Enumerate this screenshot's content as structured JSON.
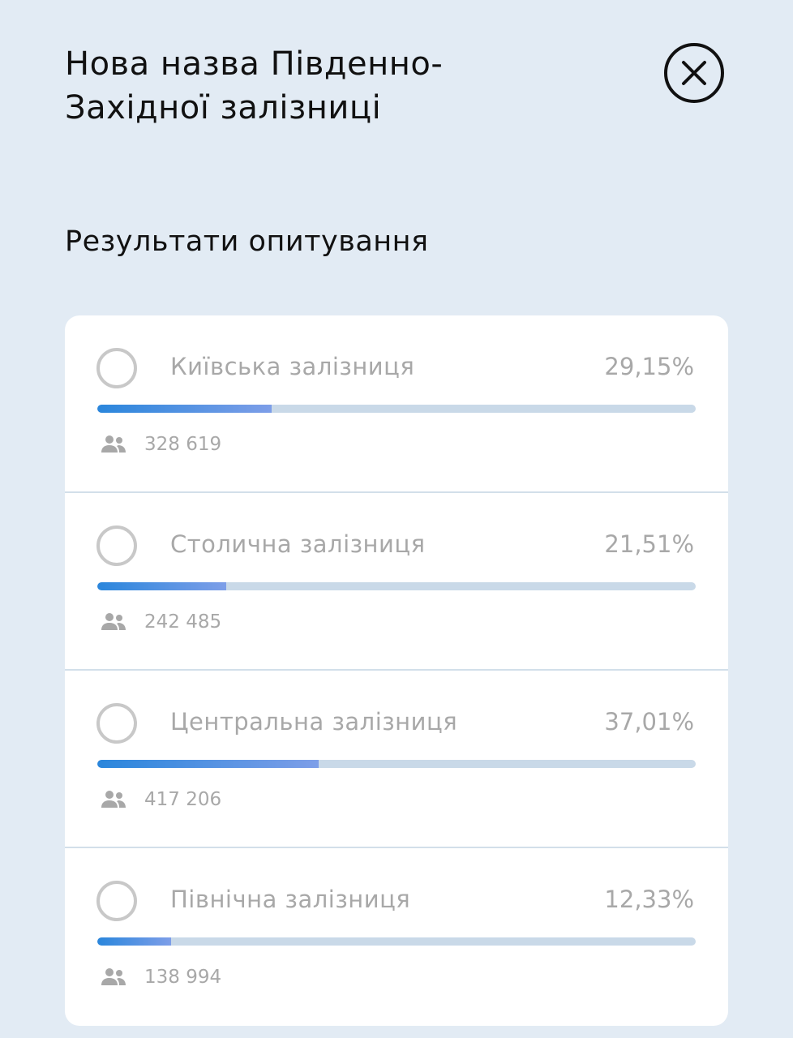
{
  "header": {
    "title": "Нова назва Південно-Західної залізниці",
    "close_icon": "close-circle-icon"
  },
  "poll": {
    "subtitle": "Результати опитування",
    "colors": {
      "bar_start": "#2a86dc",
      "bar_end": "#7d9ee8",
      "track": "#c9d9e8"
    },
    "options": [
      {
        "label": "Київська залізниця",
        "percent_text": "29,15%",
        "percent": 29.15,
        "votes": "328 619"
      },
      {
        "label": "Столична залізниця",
        "percent_text": "21,51%",
        "percent": 21.51,
        "votes": "242 485"
      },
      {
        "label": "Центральна залізниця",
        "percent_text": "37,01%",
        "percent": 37.01,
        "votes": "417 206"
      },
      {
        "label": "Північна залізниця",
        "percent_text": "12,33%",
        "percent": 12.33,
        "votes": "138 994"
      }
    ]
  }
}
